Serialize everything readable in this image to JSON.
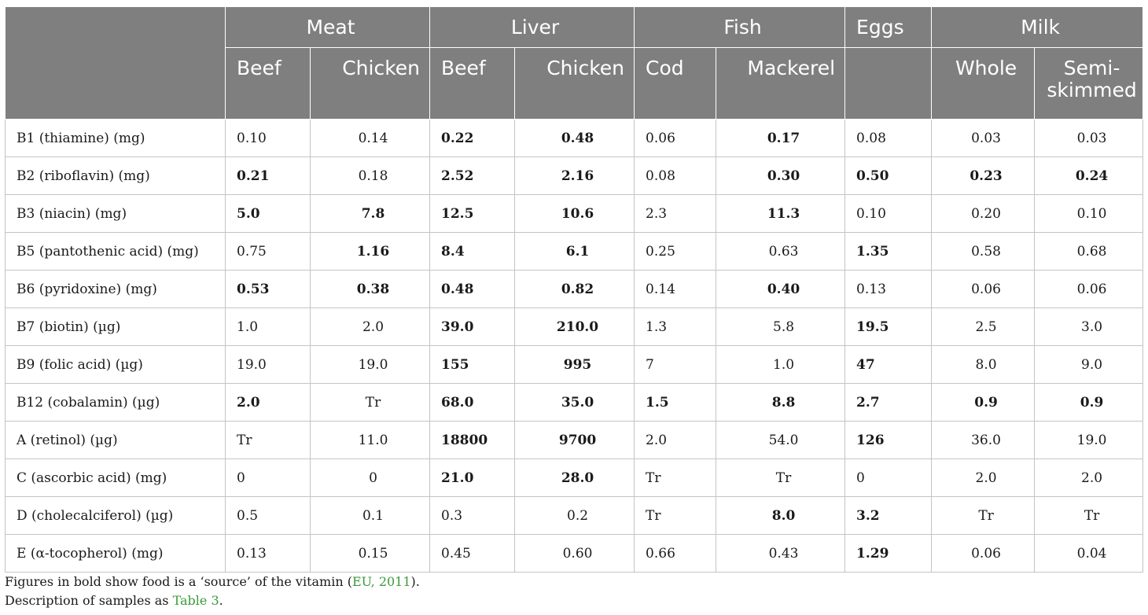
{
  "groups": [
    "Meat",
    "Liver",
    "Fish",
    "Eggs",
    "Milk"
  ],
  "subheaders": [
    "Beef",
    "Chicken",
    "Beef",
    "Chicken",
    "Cod",
    "Mackerel",
    "",
    "Whole",
    "Semi-skimmed"
  ],
  "rows": [
    {
      "label": "B1 (thiamine) (mg)",
      "values": [
        "0.10",
        "0.14",
        "0.22",
        "0.48",
        "0.06",
        "0.17",
        "0.08",
        "0.03",
        "0.03"
      ],
      "bold": [
        false,
        false,
        true,
        true,
        false,
        true,
        false,
        false,
        false
      ]
    },
    {
      "label": "B2 (riboflavin) (mg)",
      "values": [
        "0.21",
        "0.18",
        "2.52",
        "2.16",
        "0.08",
        "0.30",
        "0.50",
        "0.23",
        "0.24"
      ],
      "bold": [
        true,
        false,
        true,
        true,
        false,
        true,
        true,
        true,
        true
      ]
    },
    {
      "label": "B3 (niacin) (mg)",
      "values": [
        "5.0",
        "7.8",
        "12.5",
        "10.6",
        "2.3",
        "11.3",
        "0.10",
        "0.20",
        "0.10"
      ],
      "bold": [
        true,
        true,
        true,
        true,
        false,
        true,
        false,
        false,
        false
      ]
    },
    {
      "label": "B5 (pantothenic acid) (mg)",
      "values": [
        "0.75",
        "1.16",
        "8.4",
        "6.1",
        "0.25",
        "0.63",
        "1.35",
        "0.58",
        "0.68"
      ],
      "bold": [
        false,
        true,
        true,
        true,
        false,
        false,
        true,
        false,
        false
      ]
    },
    {
      "label": "B6 (pyridoxine) (mg)",
      "values": [
        "0.53",
        "0.38",
        "0.48",
        "0.82",
        "0.14",
        "0.40",
        "0.13",
        "0.06",
        "0.06"
      ],
      "bold": [
        true,
        true,
        true,
        true,
        false,
        true,
        false,
        false,
        false
      ]
    },
    {
      "label": "B7 (biotin) (µg)",
      "values": [
        "1.0",
        "2.0",
        "39.0",
        "210.0",
        "1.3",
        "5.8",
        "19.5",
        "2.5",
        "3.0"
      ],
      "bold": [
        false,
        false,
        true,
        true,
        false,
        false,
        true,
        false,
        false
      ]
    },
    {
      "label": "B9 (folic acid) (µg)",
      "values": [
        "19.0",
        "19.0",
        "155",
        "995",
        "7",
        "1.0",
        "47",
        "8.0",
        "9.0"
      ],
      "bold": [
        false,
        false,
        true,
        true,
        false,
        false,
        true,
        false,
        false
      ]
    },
    {
      "label": "B12 (cobalamin) (µg)",
      "values": [
        "2.0",
        "Tr",
        "68.0",
        "35.0",
        "1.5",
        "8.8",
        "2.7",
        "0.9",
        "0.9"
      ],
      "bold": [
        true,
        false,
        true,
        true,
        true,
        true,
        true,
        true,
        true
      ]
    },
    {
      "label": "A (retinol) (µg)",
      "values": [
        "Tr",
        "11.0",
        "18800",
        "9700",
        "2.0",
        "54.0",
        "126",
        "36.0",
        "19.0"
      ],
      "bold": [
        false,
        false,
        true,
        true,
        false,
        false,
        true,
        false,
        false
      ]
    },
    {
      "label": "C (ascorbic acid) (mg)",
      "values": [
        "0",
        "0",
        "21.0",
        "28.0",
        "Tr",
        "Tr",
        "0",
        "2.0",
        "2.0"
      ],
      "bold": [
        false,
        false,
        true,
        true,
        false,
        false,
        false,
        false,
        false
      ]
    },
    {
      "label": "D (cholecalciferol) (µg)",
      "values": [
        "0.5",
        "0.1",
        "0.3",
        "0.2",
        "Tr",
        "8.0",
        "3.2",
        "Tr",
        "Tr"
      ],
      "bold": [
        false,
        false,
        false,
        false,
        false,
        true,
        true,
        false,
        false
      ]
    },
    {
      "label": "E (α-tocopherol) (mg)",
      "values": [
        "0.13",
        "0.15",
        "0.45",
        "0.60",
        "0.66",
        "0.43",
        "1.29",
        "0.06",
        "0.04"
      ],
      "bold": [
        false,
        false,
        false,
        false,
        false,
        false,
        true,
        false,
        false
      ]
    }
  ],
  "notes": {
    "line1_before": "Figures in bold show food is a ‘source’ of the vitamin (",
    "line1_link": "EU, 2011",
    "line1_after": ").",
    "line2_before": "Description of samples as ",
    "line2_link": "Table 3",
    "line2_after": "."
  },
  "colors": {
    "header_bg": "#7f7f7f",
    "header_text": "#ffffff",
    "link": "#3a9a3a",
    "border": "#c4c4c4"
  }
}
